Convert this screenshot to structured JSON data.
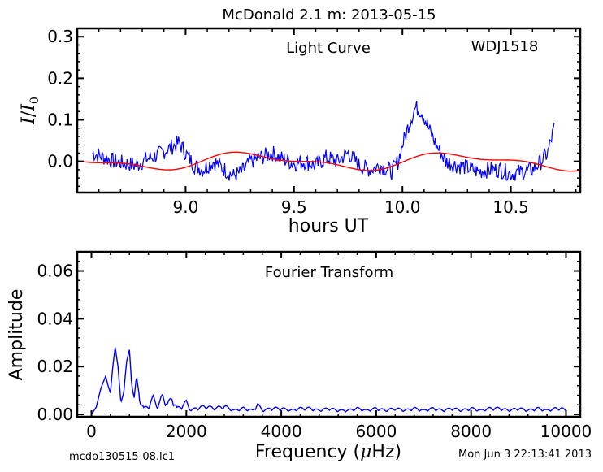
{
  "figure_title": "McDonald 2.1 m:  2013-05-15",
  "footer": {
    "left": "mcdo130515-08.lc1",
    "right": "Mon Jun  3 22:13:41 2013"
  },
  "colors": {
    "data": "#0000ff",
    "model": "#ff0000",
    "axes": "#000000"
  },
  "chart_data": [
    {
      "type": "line",
      "annotations": [
        "Light Curve",
        "WDJ1518"
      ],
      "xlabel": "hours UT",
      "ylabel": "I/I0",
      "xlim": [
        8.5,
        10.82
      ],
      "ylim": [
        -0.075,
        0.32
      ],
      "xticks": [
        9.0,
        9.5,
        10.0,
        10.5
      ],
      "xtick_labels": [
        "9.0",
        "9.5",
        "10.0",
        "10.5"
      ],
      "yticks": [
        0.0,
        0.1,
        0.2,
        0.3
      ],
      "ytick_labels": [
        "0.0",
        "0.1",
        "0.2",
        "0.3"
      ],
      "series": [
        {
          "role": "light-curve-data",
          "color": "#0000ff",
          "x": [
            8.57,
            8.62,
            8.67,
            8.72,
            8.77,
            8.82,
            8.87,
            8.92,
            8.97,
            9.0,
            9.04,
            9.08,
            9.13,
            9.18,
            9.22,
            9.26,
            9.3,
            9.35,
            9.4,
            9.45,
            9.5,
            9.55,
            9.6,
            9.65,
            9.7,
            9.75,
            9.8,
            9.85,
            9.9,
            9.95,
            9.98,
            10.0,
            10.03,
            10.06,
            10.09,
            10.12,
            10.16,
            10.2,
            10.25,
            10.3,
            10.35,
            10.4,
            10.45,
            10.5,
            10.55,
            10.6,
            10.64,
            10.67,
            10.7
          ],
          "y": [
            0.02,
            0.01,
            0.0,
            -0.005,
            -0.01,
            0.005,
            0.015,
            0.03,
            0.045,
            0.02,
            -0.01,
            -0.02,
            0.0,
            -0.02,
            -0.035,
            -0.025,
            0.0,
            0.01,
            0.02,
            0.005,
            -0.005,
            0.0,
            -0.01,
            0.01,
            0.0,
            0.02,
            -0.01,
            -0.02,
            -0.01,
            -0.025,
            0.0,
            0.04,
            0.09,
            0.13,
            0.12,
            0.08,
            0.035,
            0.0,
            -0.01,
            -0.015,
            -0.025,
            -0.02,
            -0.02,
            -0.03,
            -0.025,
            -0.02,
            0.0,
            0.02,
            0.08
          ]
        },
        {
          "role": "sinusoid-fit",
          "color": "#ff0000",
          "model": {
            "form": "sum_of_sines",
            "terms": [
              {
                "amp": 0.017,
                "period_h": 0.95,
                "phase_x0": 9.065
              },
              {
                "amp": 0.008,
                "period_h": 0.46,
                "phase_x0": 9.08
              }
            ],
            "x_range": [
              8.5,
              10.82
            ]
          }
        }
      ]
    },
    {
      "type": "line",
      "annotations": [
        "Fourier Transform"
      ],
      "xlabel": "Frequency (μHz)",
      "xlabel_parts": [
        "Frequency (",
        "μ",
        "Hz)"
      ],
      "ylabel": "Amplitude",
      "xlim": [
        -300,
        10300
      ],
      "ylim": [
        -0.001,
        0.068
      ],
      "xticks": [
        0,
        2000,
        4000,
        6000,
        8000,
        10000
      ],
      "xtick_labels": [
        "0",
        "2000",
        "4000",
        "6000",
        "8000",
        "10000"
      ],
      "yticks": [
        0.0,
        0.02,
        0.04,
        0.06
      ],
      "ytick_labels": [
        "0.00",
        "0.02",
        "0.04",
        "0.06"
      ],
      "series": [
        {
          "role": "amplitude-spectrum",
          "color": "#0000ff",
          "x": [
            0,
            100,
            200,
            300,
            350,
            400,
            450,
            500,
            560,
            620,
            680,
            740,
            800,
            850,
            900,
            950,
            1000,
            1100,
            1200,
            1300,
            1400,
            1500,
            1600,
            1700,
            1800,
            1900,
            2000,
            2100,
            2200,
            2400,
            2600,
            2800,
            3000,
            3200,
            3400,
            3500,
            3600,
            3800,
            4000,
            4200,
            4400,
            4600,
            4800,
            5000,
            5200,
            5400,
            5600,
            5800,
            6000,
            6200,
            6400,
            6600,
            6800,
            7000,
            7200,
            7400,
            7600,
            7800,
            8000,
            8200,
            8400,
            8600,
            8800,
            9000,
            9200,
            9400,
            9600,
            9800,
            9900,
            10000
          ],
          "y": [
            0.0,
            0.003,
            0.011,
            0.016,
            0.012,
            0.009,
            0.02,
            0.028,
            0.02,
            0.005,
            0.009,
            0.022,
            0.027,
            0.012,
            0.007,
            0.016,
            0.009,
            0.003,
            0.004,
            0.008,
            0.004,
            0.009,
            0.005,
            0.008,
            0.003,
            0.004,
            0.006,
            0.002,
            0.003,
            0.004,
            0.003,
            0.004,
            0.002,
            0.003,
            0.002,
            0.005,
            0.002,
            0.003,
            0.003,
            0.002,
            0.003,
            0.003,
            0.002,
            0.003,
            0.002,
            0.002,
            0.003,
            0.002,
            0.003,
            0.002,
            0.003,
            0.002,
            0.003,
            0.002,
            0.003,
            0.002,
            0.003,
            0.002,
            0.003,
            0.002,
            0.003,
            0.003,
            0.002,
            0.003,
            0.002,
            0.003,
            0.002,
            0.003,
            0.003,
            0.002
          ]
        }
      ]
    }
  ]
}
